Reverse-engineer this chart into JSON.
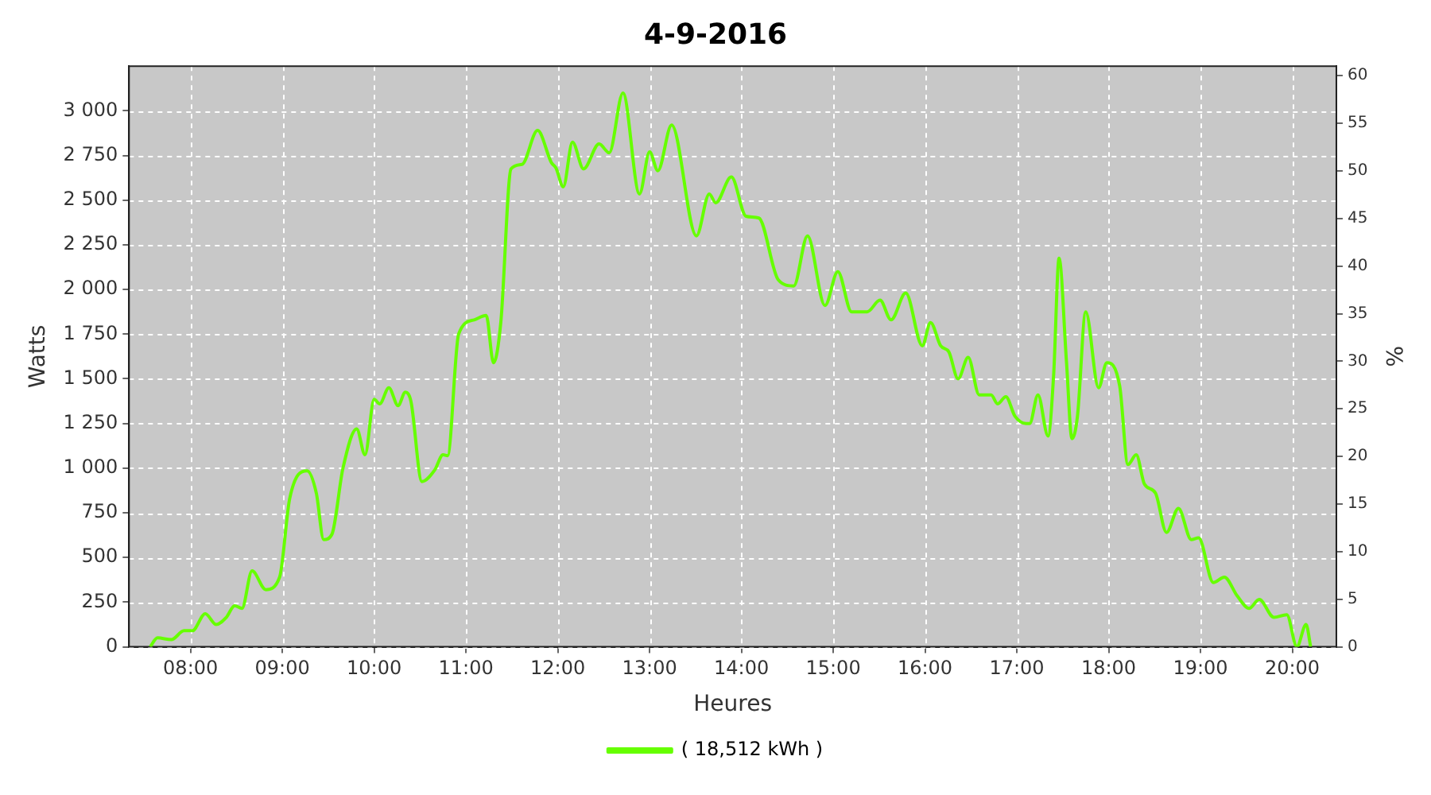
{
  "chart_data": {
    "type": "line",
    "title": "4-9-2016",
    "xlabel": "Heures",
    "ylabel": "Watts",
    "y2label": "%",
    "x": [
      7.56,
      7.64,
      7.79,
      7.93,
      8.02,
      8.16,
      8.28,
      8.39,
      8.48,
      8.56,
      8.67,
      8.82,
      8.97,
      9.08,
      9.27,
      9.37,
      9.45,
      9.54,
      9.66,
      9.81,
      9.9,
      10.0,
      10.06,
      10.16,
      10.26,
      10.34,
      10.4,
      10.52,
      10.66,
      10.75,
      10.8,
      10.92,
      11.09,
      11.22,
      11.3,
      11.38,
      11.49,
      11.61,
      11.78,
      11.93,
      11.98,
      12.06,
      12.16,
      12.28,
      12.45,
      12.56,
      12.71,
      12.89,
      13.0,
      13.09,
      13.24,
      13.51,
      13.65,
      13.72,
      13.89,
      14.05,
      14.19,
      14.4,
      14.57,
      14.72,
      14.91,
      15.05,
      15.2,
      15.37,
      15.51,
      15.63,
      15.79,
      15.97,
      16.06,
      16.17,
      16.26,
      16.36,
      16.47,
      16.59,
      16.72,
      16.79,
      16.88,
      16.98,
      17.1,
      17.14,
      17.23,
      17.34,
      17.4,
      17.46,
      17.54,
      17.6,
      17.66,
      17.75,
      17.89,
      17.98,
      18.12,
      18.21,
      18.3,
      18.39,
      18.51,
      18.63,
      18.76,
      18.9,
      18.98,
      19.14,
      19.26,
      19.4,
      19.53,
      19.64,
      19.8,
      19.94,
      20.05,
      20.15,
      20.2
    ],
    "series": [
      {
        "name": "( 18,512 kWh )",
        "color": "#66ff00",
        "values": [
          0,
          50,
          40,
          90,
          90,
          185,
          125,
          165,
          230,
          215,
          425,
          320,
          390,
          830,
          985,
          860,
          600,
          630,
          1000,
          1220,
          1075,
          1385,
          1360,
          1450,
          1350,
          1425,
          1375,
          925,
          990,
          1075,
          1070,
          1750,
          1830,
          1855,
          1590,
          1820,
          2675,
          2700,
          2890,
          2710,
          2680,
          2575,
          2825,
          2675,
          2815,
          2765,
          3100,
          2535,
          2770,
          2665,
          2920,
          2300,
          2535,
          2485,
          2630,
          2410,
          2400,
          2055,
          2020,
          2300,
          1910,
          2100,
          1875,
          1875,
          1940,
          1830,
          1980,
          1685,
          1815,
          1685,
          1650,
          1500,
          1620,
          1410,
          1410,
          1360,
          1400,
          1290,
          1250,
          1250,
          1410,
          1180,
          1515,
          2175,
          1600,
          1165,
          1290,
          1875,
          1450,
          1590,
          1460,
          1020,
          1075,
          910,
          860,
          640,
          775,
          600,
          610,
          360,
          390,
          285,
          215,
          265,
          165,
          180,
          0,
          125,
          0
        ]
      }
    ],
    "xlim": [
      7.33,
      20.48
    ],
    "xticks": [
      {
        "value": 8,
        "label": "08:00"
      },
      {
        "value": 9,
        "label": "09:00"
      },
      {
        "value": 10,
        "label": "10:00"
      },
      {
        "value": 11,
        "label": "11:00"
      },
      {
        "value": 12,
        "label": "12:00"
      },
      {
        "value": 13,
        "label": "13:00"
      },
      {
        "value": 14,
        "label": "14:00"
      },
      {
        "value": 15,
        "label": "15:00"
      },
      {
        "value": 16,
        "label": "16:00"
      },
      {
        "value": 17,
        "label": "17:00"
      },
      {
        "value": 18,
        "label": "18:00"
      },
      {
        "value": 19,
        "label": "19:00"
      },
      {
        "value": 20,
        "label": "20:00"
      }
    ],
    "ylim": [
      0,
      3250
    ],
    "yticks": [
      0,
      250,
      500,
      750,
      {
        "value": 1000,
        "label": "1 000"
      },
      {
        "value": 1250,
        "label": "1 250"
      },
      {
        "value": 1500,
        "label": "1 500"
      },
      {
        "value": 1750,
        "label": "1 750"
      },
      {
        "value": 2000,
        "label": "2 000"
      },
      {
        "value": 2250,
        "label": "2 250"
      },
      {
        "value": 2500,
        "label": "2 500"
      },
      {
        "value": 2750,
        "label": "2 750"
      },
      {
        "value": 3000,
        "label": "3 000"
      }
    ],
    "y2lim": [
      0,
      61
    ],
    "y2ticks": [
      0,
      5,
      10,
      15,
      20,
      25,
      30,
      35,
      40,
      45,
      50,
      55,
      60
    ],
    "grid": true,
    "legend": "bottom",
    "marker": "none",
    "line_style": "solid"
  }
}
